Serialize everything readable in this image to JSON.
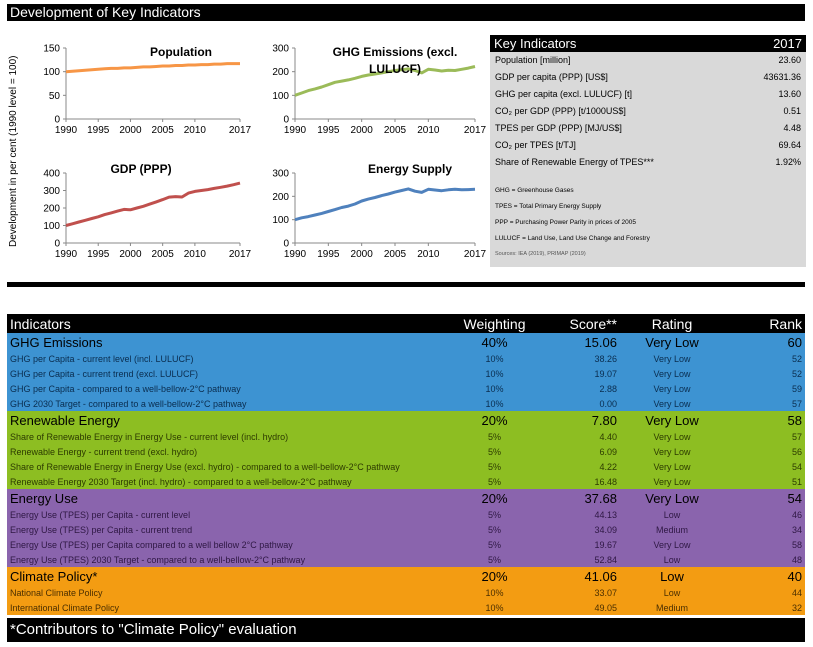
{
  "title": "Development of Key Indicators",
  "y_axis_title": "Development in per cent (1990 level = 100)",
  "chart_data": [
    {
      "type": "line",
      "title": "Population",
      "color": "#f79646",
      "xlim": [
        1990,
        2017
      ],
      "ylim": [
        0,
        150
      ],
      "x_ticks": [
        1990,
        1995,
        2000,
        2005,
        2010,
        2017
      ],
      "y_ticks": [
        0,
        50,
        100,
        150
      ],
      "x": [
        1990,
        1991,
        1992,
        1993,
        1994,
        1995,
        1996,
        1997,
        1998,
        1999,
        2000,
        2001,
        2002,
        2003,
        2004,
        2005,
        2006,
        2007,
        2008,
        2009,
        2010,
        2011,
        2012,
        2013,
        2014,
        2015,
        2016,
        2017
      ],
      "values": [
        100,
        101,
        102,
        103,
        104,
        105,
        106,
        107,
        107,
        108,
        108,
        109,
        110,
        110,
        111,
        112,
        112,
        113,
        113,
        114,
        114,
        115,
        115,
        116,
        116,
        117,
        117,
        117
      ]
    },
    {
      "type": "line",
      "title": "GHG Emissions (excl. LULUCF)",
      "color": "#9bbb59",
      "xlim": [
        1990,
        2017
      ],
      "ylim": [
        0,
        300
      ],
      "x_ticks": [
        1990,
        1995,
        2000,
        2005,
        2010,
        2017
      ],
      "y_ticks": [
        0,
        100,
        200,
        300
      ],
      "x": [
        1990,
        1991,
        1992,
        1993,
        1994,
        1995,
        1996,
        1997,
        1998,
        1999,
        2000,
        2001,
        2002,
        2003,
        2004,
        2005,
        2006,
        2007,
        2008,
        2009,
        2010,
        2011,
        2012,
        2013,
        2014,
        2015,
        2016,
        2017
      ],
      "values": [
        100,
        110,
        120,
        127,
        135,
        145,
        155,
        160,
        165,
        172,
        180,
        186,
        190,
        195,
        200,
        205,
        208,
        212,
        205,
        195,
        210,
        207,
        203,
        206,
        205,
        210,
        215,
        222
      ]
    },
    {
      "type": "line",
      "title": "GDP (PPP)",
      "color": "#c0504d",
      "xlim": [
        1990,
        2017
      ],
      "ylim": [
        0,
        400
      ],
      "x_ticks": [
        1990,
        1995,
        2000,
        2005,
        2010,
        2017
      ],
      "y_ticks": [
        0,
        100,
        200,
        300,
        400
      ],
      "x": [
        1990,
        1991,
        1992,
        1993,
        1994,
        1995,
        1996,
        1997,
        1998,
        1999,
        2000,
        2001,
        2002,
        2003,
        2004,
        2005,
        2006,
        2007,
        2008,
        2009,
        2010,
        2011,
        2012,
        2013,
        2014,
        2015,
        2016,
        2017
      ],
      "values": [
        100,
        110,
        120,
        130,
        140,
        150,
        162,
        172,
        182,
        192,
        190,
        200,
        210,
        222,
        235,
        248,
        262,
        265,
        263,
        285,
        295,
        300,
        305,
        312,
        318,
        325,
        333,
        342
      ]
    },
    {
      "type": "line",
      "title": "Energy Supply",
      "color": "#4f81bd",
      "xlim": [
        1990,
        2017
      ],
      "ylim": [
        0,
        300
      ],
      "x_ticks": [
        1990,
        1995,
        2000,
        2005,
        2010,
        2017
      ],
      "y_ticks": [
        0,
        100,
        200,
        300
      ],
      "x": [
        1990,
        1991,
        1992,
        1993,
        1994,
        1995,
        1996,
        1997,
        1998,
        1999,
        2000,
        2001,
        2002,
        2003,
        2004,
        2005,
        2006,
        2007,
        2008,
        2009,
        2010,
        2011,
        2012,
        2013,
        2014,
        2015,
        2016,
        2017
      ],
      "values": [
        100,
        108,
        113,
        120,
        127,
        135,
        143,
        152,
        158,
        167,
        180,
        188,
        195,
        203,
        210,
        218,
        225,
        232,
        222,
        217,
        230,
        227,
        224,
        228,
        230,
        228,
        229,
        230
      ]
    }
  ],
  "key_indicators": {
    "header": "Key Indicators",
    "year": "2017",
    "rows": [
      {
        "label": "Population [million]",
        "value": "23.60"
      },
      {
        "label": "GDP per capita (PPP) [US$]",
        "value": "43631.36"
      },
      {
        "label": "GHG per capita (excl. LULUCF) [t]",
        "value": "13.60"
      },
      {
        "label": "CO₂ per GDP (PPP) [t/1000US$]",
        "value": "0.51"
      },
      {
        "label": "TPES per GDP (PPP) [MJ/US$]",
        "value": "4.48"
      },
      {
        "label": "CO₂ per TPES [t/TJ]",
        "value": "69.64"
      },
      {
        "label": "Share of Renewable Energy of TPES***",
        "value": "1.92%"
      }
    ],
    "notes": [
      "GHG = Greenhouse Gases",
      "TPES = Total Primary Energy Supply",
      "PPP = Purchasing Power Parity in prices of 2005",
      "LULUCF = Land Use, Land Use Change and Forestry"
    ],
    "source": "Sources: IEA (2019), PRIMAP (2019)"
  },
  "table": {
    "headers": {
      "indicators": "Indicators",
      "weighting": "Weighting",
      "score": "Score**",
      "rating": "Rating",
      "rank": "Rank"
    },
    "groups": [
      {
        "color": "#3d93d2",
        "name": "GHG Emissions",
        "weighting": "40%",
        "score": "15.06",
        "rating": "Very Low",
        "rank": "60",
        "rows": [
          {
            "name": "GHG per Capita - current level (incl. LULUCF)",
            "weighting": "10%",
            "score": "38.26",
            "rating": "Very Low",
            "rank": "52"
          },
          {
            "name": "GHG per Capita - current trend (excl. LULUCF)",
            "weighting": "10%",
            "score": "19.07",
            "rating": "Very Low",
            "rank": "52"
          },
          {
            "name": "GHG per Capita - compared to a well-bellow-2°C pathway",
            "weighting": "10%",
            "score": "2.88",
            "rating": "Very Low",
            "rank": "59"
          },
          {
            "name": "GHG 2030 Target - compared to a well-bellow-2°C pathway",
            "weighting": "10%",
            "score": "0.00",
            "rating": "Very Low",
            "rank": "57"
          }
        ]
      },
      {
        "color": "#8dbe22",
        "name": "Renewable Energy",
        "weighting": "20%",
        "score": "7.80",
        "rating": "Very Low",
        "rank": "58",
        "rows": [
          {
            "name": "Share of Renewable Energy in Energy Use - current level (incl. hydro)",
            "weighting": "5%",
            "score": "4.40",
            "rating": "Very Low",
            "rank": "57"
          },
          {
            "name": "Renewable Energy - current trend (excl. hydro)",
            "weighting": "5%",
            "score": "6.09",
            "rating": "Very Low",
            "rank": "56"
          },
          {
            "name": "Share of Renewable Energy in Energy Use (excl. hydro) - compared to a well-bellow-2°C pathway",
            "weighting": "5%",
            "score": "4.22",
            "rating": "Very Low",
            "rank": "54"
          },
          {
            "name": "Renewable Energy 2030 Target (incl. hydro) - compared to a well-bellow-2°C pathway",
            "weighting": "5%",
            "score": "16.48",
            "rating": "Very Low",
            "rank": "51"
          }
        ]
      },
      {
        "color": "#8a64ad",
        "name": "Energy Use",
        "weighting": "20%",
        "score": "37.68",
        "rating": "Very Low",
        "rank": "54",
        "rows": [
          {
            "name": "Energy Use (TPES) per Capita - current level",
            "weighting": "5%",
            "score": "44.13",
            "rating": "Low",
            "rank": "46"
          },
          {
            "name": "Energy Use (TPES) per Capita - current trend",
            "weighting": "5%",
            "score": "34.09",
            "rating": "Medium",
            "rank": "34"
          },
          {
            "name": "Energy Use (TPES) per Capita compared to a well bellow 2°C pathway",
            "weighting": "5%",
            "score": "19.67",
            "rating": "Very Low",
            "rank": "58"
          },
          {
            "name": "Energy Use (TPES) 2030 Target - compared to a well-bellow-2°C pathway",
            "weighting": "5%",
            "score": "52.84",
            "rating": "Low",
            "rank": "48"
          }
        ]
      },
      {
        "color": "#f39c12",
        "name": "Climate Policy*",
        "weighting": "20%",
        "score": "41.06",
        "rating": "Low",
        "rank": "40",
        "rows": [
          {
            "name": "National Climate Policy",
            "weighting": "10%",
            "score": "33.07",
            "rating": "Low",
            "rank": "44"
          },
          {
            "name": "International Climate Policy",
            "weighting": "10%",
            "score": "49.05",
            "rating": "Medium",
            "rank": "32"
          }
        ]
      }
    ]
  },
  "footer": "*Contributors to \"Climate Policy\" evaluation"
}
